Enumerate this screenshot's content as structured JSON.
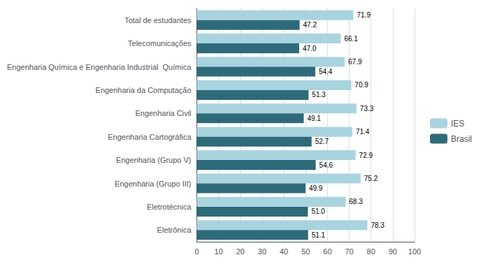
{
  "chart_data": {
    "type": "bar",
    "orientation": "horizontal",
    "categories": [
      "Eletrônica",
      "Eletrotécnica",
      "Engenharia (Grupo III)",
      "Engenharia (Grupo V)",
      "Engenharia Cartográfica",
      "Engenharia Civil",
      "Engenharia da Computação",
      "Engenharia Química e Engenharia Industrial  Química",
      "Telecomunicações",
      "Total de estudantes"
    ],
    "series": [
      {
        "name": "IES",
        "color": "#a8d4e0",
        "values": [
          78.3,
          68.3,
          75.2,
          72.9,
          71.4,
          73.3,
          70.9,
          67.9,
          66.1,
          71.9
        ]
      },
      {
        "name": "Brasil",
        "color": "#2e6b7a",
        "values": [
          51.1,
          51.0,
          49.9,
          54.6,
          52.7,
          49.1,
          51.3,
          54.4,
          47.0,
          47.2
        ],
        "value_labels": [
          "51.1",
          "51.0",
          "49.9",
          "54.6",
          "52.7",
          "49.1",
          "51.3",
          "54.4",
          "47.0",
          "47.2"
        ]
      }
    ],
    "xlim": [
      0,
      100
    ],
    "xticks": [
      0,
      10,
      20,
      30,
      40,
      50,
      60,
      70,
      80,
      90,
      100
    ],
    "grid": true,
    "legend": "right",
    "data_labels": true
  }
}
